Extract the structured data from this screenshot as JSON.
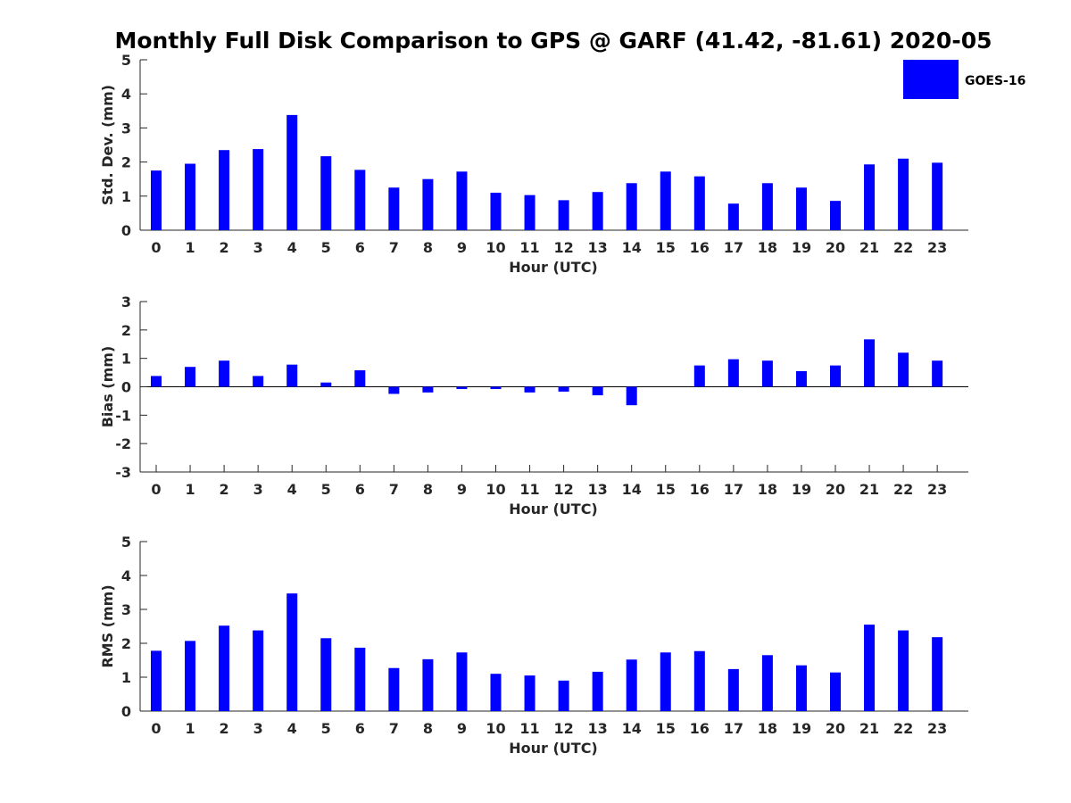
{
  "title": "Monthly Full Disk Comparison to GPS @ GARF (41.42, -81.61) 2020-05",
  "legend": {
    "label": "GOES-16",
    "color": "#0000ff",
    "placement": "top-right"
  },
  "chart_data": [
    {
      "type": "bar",
      "xlabel": "Hour (UTC)",
      "ylabel": "Std. Dev. (mm)",
      "ylim": [
        0,
        5
      ],
      "yticks": [
        0,
        1,
        2,
        3,
        4,
        5
      ],
      "categories": [
        "0",
        "1",
        "2",
        "3",
        "4",
        "5",
        "6",
        "7",
        "8",
        "9",
        "10",
        "11",
        "12",
        "13",
        "14",
        "15",
        "16",
        "17",
        "18",
        "19",
        "20",
        "21",
        "22",
        "23"
      ],
      "series": [
        {
          "name": "GOES-16",
          "color": "#0000ff",
          "values": [
            1.75,
            1.95,
            2.35,
            2.38,
            3.38,
            2.17,
            1.77,
            1.25,
            1.5,
            1.72,
            1.1,
            1.03,
            0.88,
            1.12,
            1.38,
            1.72,
            1.58,
            0.78,
            1.38,
            1.25,
            0.86,
            1.93,
            2.1,
            1.98
          ]
        }
      ]
    },
    {
      "type": "bar",
      "xlabel": "Hour (UTC)",
      "ylabel": "Bias (mm)",
      "ylim": [
        -3,
        3
      ],
      "yticks": [
        -3,
        -2,
        -1,
        0,
        1,
        2,
        3
      ],
      "categories": [
        "0",
        "1",
        "2",
        "3",
        "4",
        "5",
        "6",
        "7",
        "8",
        "9",
        "10",
        "11",
        "12",
        "13",
        "14",
        "15",
        "16",
        "17",
        "18",
        "19",
        "20",
        "21",
        "22",
        "23"
      ],
      "series": [
        {
          "name": "GOES-16",
          "color": "#0000ff",
          "values": [
            0.38,
            0.7,
            0.92,
            0.38,
            0.78,
            0.15,
            0.58,
            -0.25,
            -0.2,
            -0.08,
            -0.08,
            -0.2,
            -0.17,
            -0.3,
            -0.65,
            0.0,
            0.75,
            0.97,
            0.92,
            0.55,
            0.75,
            1.67,
            1.2,
            0.92
          ]
        }
      ]
    },
    {
      "type": "bar",
      "xlabel": "Hour (UTC)",
      "ylabel": "RMS (mm)",
      "ylim": [
        0,
        5
      ],
      "yticks": [
        0,
        1,
        2,
        3,
        4,
        5
      ],
      "categories": [
        "0",
        "1",
        "2",
        "3",
        "4",
        "5",
        "6",
        "7",
        "8",
        "9",
        "10",
        "11",
        "12",
        "13",
        "14",
        "15",
        "16",
        "17",
        "18",
        "19",
        "20",
        "21",
        "22",
        "23"
      ],
      "series": [
        {
          "name": "GOES-16",
          "color": "#0000ff",
          "values": [
            1.78,
            2.07,
            2.52,
            2.38,
            3.47,
            2.15,
            1.87,
            1.27,
            1.53,
            1.73,
            1.1,
            1.05,
            0.9,
            1.16,
            1.52,
            1.73,
            1.77,
            1.24,
            1.65,
            1.35,
            1.14,
            2.55,
            2.38,
            2.18
          ]
        }
      ]
    }
  ]
}
